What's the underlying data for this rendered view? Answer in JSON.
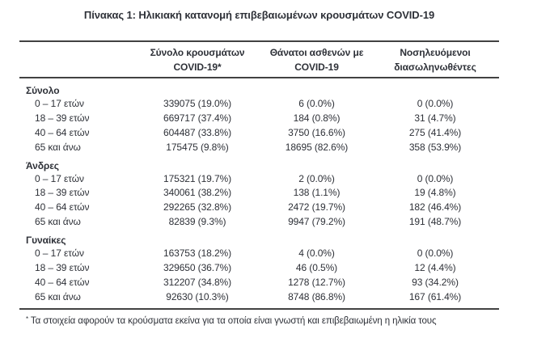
{
  "title": "Πίνακας 1: Ηλικιακή κατανομή επιβεβαιωμένων κρουσμάτων COVID-19",
  "table": {
    "col_headers": [
      {
        "line1": "",
        "line2": ""
      },
      {
        "line1": "Σύνολο κρουσμάτων",
        "line2": "COVID-19*"
      },
      {
        "line1": "Θάνατοι ασθενών με",
        "line2": "COVID-19"
      },
      {
        "line1": "Νοσηλευόμενοι",
        "line2": "διασωληνωθέντες"
      }
    ],
    "sections": [
      {
        "label": "Σύνολο",
        "rows": [
          {
            "age": "0 – 17 ετών",
            "cases": "339075 (19.0%)",
            "deaths": "6 (0.0%)",
            "intubated": "0 (0.0%)"
          },
          {
            "age": "18 – 39 ετών",
            "cases": "669717 (37.4%)",
            "deaths": "184 (0.8%)",
            "intubated": "31 (4.7%)"
          },
          {
            "age": "40 – 64 ετών",
            "cases": "604487 (33.8%)",
            "deaths": "3750 (16.6%)",
            "intubated": "275 (41.4%)"
          },
          {
            "age": "65 και άνω",
            "cases": "175475 (9.8%)",
            "deaths": "18695 (82.6%)",
            "intubated": "358 (53.9%)"
          }
        ]
      },
      {
        "label": "Άνδρες",
        "rows": [
          {
            "age": "0 – 17 ετών",
            "cases": "175321 (19.7%)",
            "deaths": "2 (0.0%)",
            "intubated": "0 (0.0%)"
          },
          {
            "age": "18 – 39 ετών",
            "cases": "340061 (38.2%)",
            "deaths": "138 (1.1%)",
            "intubated": "19 (4.8%)"
          },
          {
            "age": "40 – 64 ετών",
            "cases": "292265 (32.8%)",
            "deaths": "2472 (19.7%)",
            "intubated": "182 (46.4%)"
          },
          {
            "age": "65 και άνω",
            "cases": "82839 (9.3%)",
            "deaths": "9947 (79.2%)",
            "intubated": "191 (48.7%)"
          }
        ]
      },
      {
        "label": "Γυναίκες",
        "rows": [
          {
            "age": "0 – 17 ετών",
            "cases": "163753 (18.2%)",
            "deaths": "4 (0.0%)",
            "intubated": "0 (0.0%)"
          },
          {
            "age": "18 – 39 ετών",
            "cases": "329650 (36.7%)",
            "deaths": "46 (0.5%)",
            "intubated": "12 (4.4%)"
          },
          {
            "age": "40 – 64 ετών",
            "cases": "312207 (34.8%)",
            "deaths": "1278 (12.7%)",
            "intubated": "93 (34.2%)"
          },
          {
            "age": "65 και άνω",
            "cases": "92630 (10.3%)",
            "deaths": "8748 (86.8%)",
            "intubated": "167 (61.4%)"
          }
        ]
      }
    ],
    "footnote_marker": "*",
    "footnote_text": "Τα στοιχεία αφορούν τα κρούσματα εκείνα για τα οποία είναι γνωστή και επιβεβαιωμένη η ηλικία τους"
  },
  "colors": {
    "text": "#2e3138",
    "rule": "#424242",
    "background": "#ffffff"
  }
}
